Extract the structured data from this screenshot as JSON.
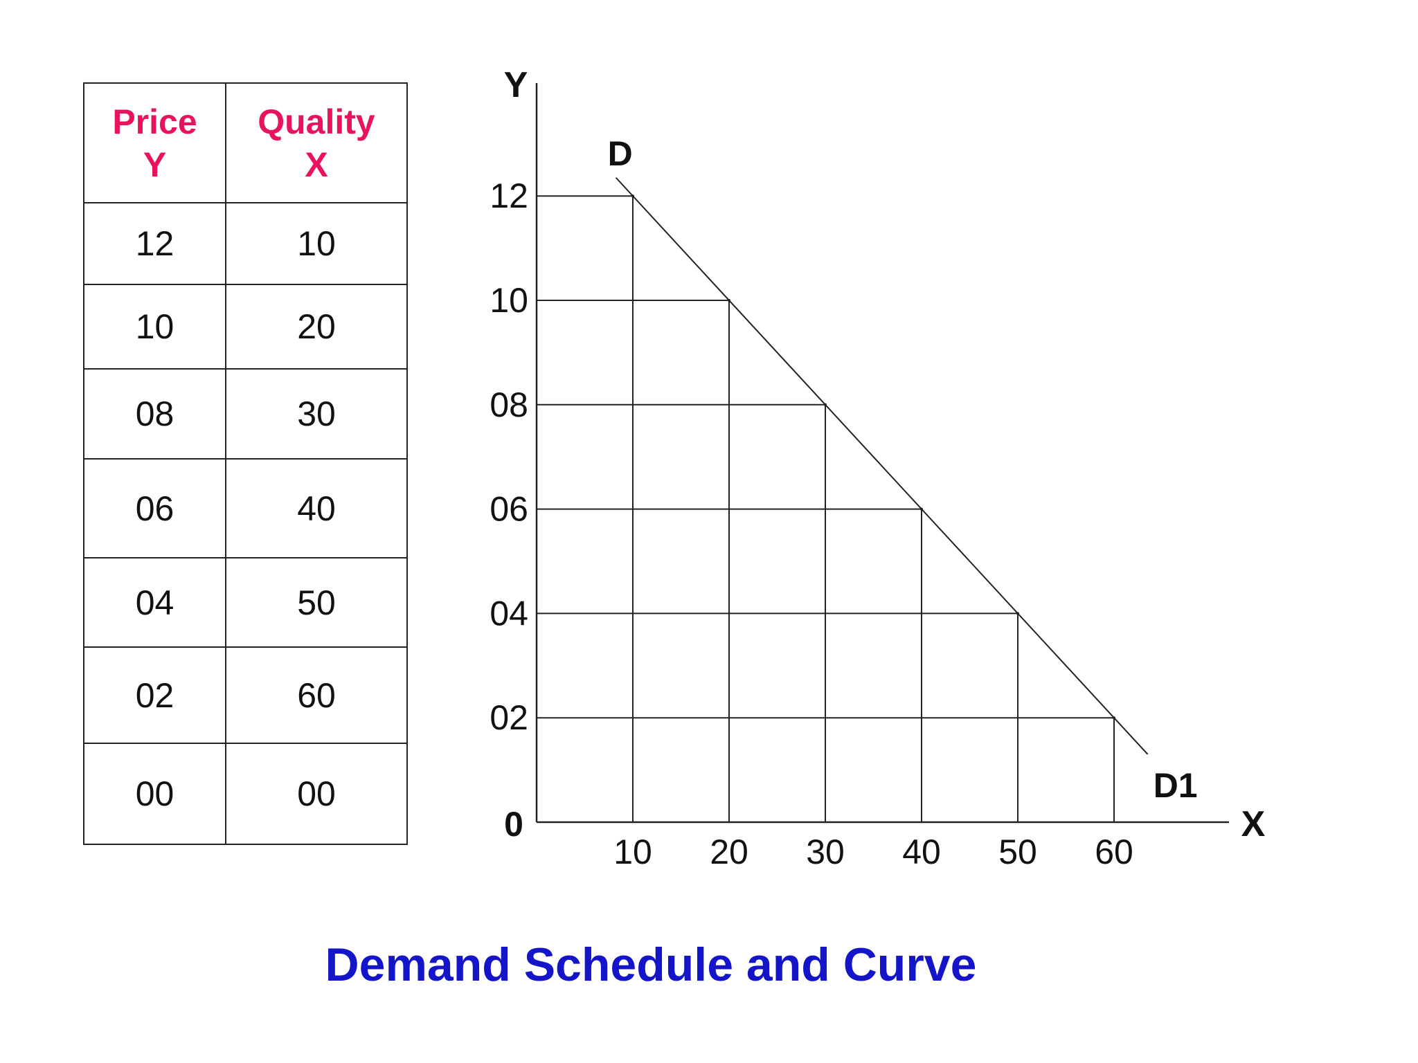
{
  "table": {
    "headers": [
      {
        "line1": "Price",
        "line2": "Y"
      },
      {
        "line1": "Quality",
        "line2": "X"
      }
    ],
    "rows": [
      {
        "price": "12",
        "quantity": "10"
      },
      {
        "price": "10",
        "quantity": "20"
      },
      {
        "price": "08",
        "quantity": "30"
      },
      {
        "price": "06",
        "quantity": "40"
      },
      {
        "price": "04",
        "quantity": "50"
      },
      {
        "price": "02",
        "quantity": "60"
      },
      {
        "price": "00",
        "quantity": "00"
      }
    ]
  },
  "chart_data": {
    "type": "line",
    "title": "Demand Schedule and Curve",
    "xlabel": "X",
    "ylabel": "Y",
    "origin_label": "0",
    "x_ticks": [
      "10",
      "20",
      "30",
      "40",
      "50",
      "60"
    ],
    "y_ticks": [
      "02",
      "04",
      "06",
      "08",
      "10",
      "12"
    ],
    "xlim": [
      0,
      72
    ],
    "ylim": [
      0,
      13
    ],
    "grid": true,
    "points": [
      {
        "x": 10,
        "y": 12
      },
      {
        "x": 20,
        "y": 10
      },
      {
        "x": 30,
        "y": 8
      },
      {
        "x": 40,
        "y": 6
      },
      {
        "x": 50,
        "y": 4
      },
      {
        "x": 60,
        "y": 2
      }
    ],
    "curve_labels": {
      "start": "D",
      "end": "D1"
    }
  },
  "colors": {
    "header_text": "#e8125f",
    "title_text": "#1414c8",
    "lines": "#222222"
  }
}
